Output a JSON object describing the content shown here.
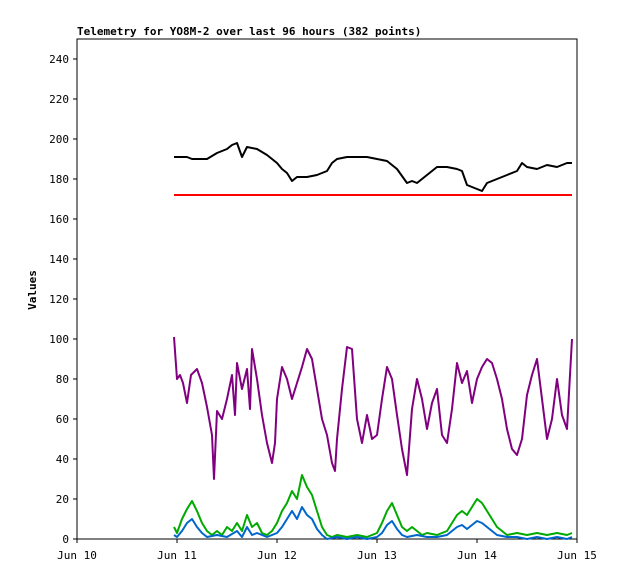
{
  "chart_data": {
    "type": "line",
    "title": "Telemetry for YO8M-2 over last 96 hours (382 points)",
    "xlabel": "",
    "ylabel": "Values",
    "ylim": [
      0,
      250
    ],
    "yticks": [
      0,
      20,
      40,
      60,
      80,
      100,
      120,
      140,
      160,
      180,
      200,
      220,
      240
    ],
    "xlim": [
      0,
      5
    ],
    "xticks": [
      {
        "x": 0,
        "label": "Jun 10"
      },
      {
        "x": 1,
        "label": "Jun 11"
      },
      {
        "x": 2,
        "label": "Jun 12"
      },
      {
        "x": 3,
        "label": "Jun 13"
      },
      {
        "x": 4,
        "label": "Jun 14"
      },
      {
        "x": 5,
        "label": "Jun 15"
      }
    ],
    "grid": false,
    "x_note": "x values are days after Jun 10 00:00",
    "series": [
      {
        "color": "#000000",
        "points": [
          [
            0.97,
            191
          ],
          [
            1.1,
            191
          ],
          [
            1.15,
            190
          ],
          [
            1.3,
            190
          ],
          [
            1.4,
            193
          ],
          [
            1.5,
            195
          ],
          [
            1.55,
            197
          ],
          [
            1.6,
            198
          ],
          [
            1.65,
            191
          ],
          [
            1.7,
            196
          ],
          [
            1.8,
            195
          ],
          [
            1.9,
            192
          ],
          [
            2.0,
            188
          ],
          [
            2.05,
            185
          ],
          [
            2.1,
            183
          ],
          [
            2.15,
            179
          ],
          [
            2.2,
            181
          ],
          [
            2.3,
            181
          ],
          [
            2.4,
            182
          ],
          [
            2.5,
            184
          ],
          [
            2.55,
            188
          ],
          [
            2.6,
            190
          ],
          [
            2.7,
            191
          ],
          [
            2.8,
            191
          ],
          [
            2.9,
            191
          ],
          [
            3.0,
            190
          ],
          [
            3.1,
            189
          ],
          [
            3.2,
            185
          ],
          [
            3.3,
            178
          ],
          [
            3.35,
            179
          ],
          [
            3.4,
            178
          ],
          [
            3.5,
            182
          ],
          [
            3.6,
            186
          ],
          [
            3.7,
            186
          ],
          [
            3.8,
            185
          ],
          [
            3.85,
            184
          ],
          [
            3.9,
            177
          ],
          [
            4.0,
            175
          ],
          [
            4.05,
            174
          ],
          [
            4.1,
            178
          ],
          [
            4.2,
            180
          ],
          [
            4.3,
            182
          ],
          [
            4.4,
            184
          ],
          [
            4.45,
            188
          ],
          [
            4.5,
            186
          ],
          [
            4.6,
            185
          ],
          [
            4.7,
            187
          ],
          [
            4.8,
            186
          ],
          [
            4.9,
            188
          ],
          [
            4.95,
            188
          ]
        ]
      },
      {
        "color": "#ff0000",
        "points": [
          [
            0.97,
            172
          ],
          [
            4.95,
            172
          ]
        ]
      },
      {
        "color": "#800080",
        "points": [
          [
            0.97,
            101
          ],
          [
            1.0,
            80
          ],
          [
            1.03,
            82
          ],
          [
            1.06,
            78
          ],
          [
            1.1,
            68
          ],
          [
            1.14,
            82
          ],
          [
            1.2,
            85
          ],
          [
            1.25,
            78
          ],
          [
            1.3,
            66
          ],
          [
            1.35,
            52
          ],
          [
            1.37,
            30
          ],
          [
            1.4,
            64
          ],
          [
            1.45,
            60
          ],
          [
            1.5,
            70
          ],
          [
            1.55,
            82
          ],
          [
            1.58,
            62
          ],
          [
            1.6,
            88
          ],
          [
            1.65,
            75
          ],
          [
            1.7,
            85
          ],
          [
            1.73,
            65
          ],
          [
            1.75,
            95
          ],
          [
            1.8,
            80
          ],
          [
            1.85,
            62
          ],
          [
            1.9,
            48
          ],
          [
            1.95,
            38
          ],
          [
            1.98,
            48
          ],
          [
            2.0,
            70
          ],
          [
            2.05,
            86
          ],
          [
            2.1,
            80
          ],
          [
            2.15,
            70
          ],
          [
            2.2,
            78
          ],
          [
            2.25,
            86
          ],
          [
            2.3,
            95
          ],
          [
            2.35,
            90
          ],
          [
            2.4,
            75
          ],
          [
            2.45,
            60
          ],
          [
            2.5,
            52
          ],
          [
            2.55,
            38
          ],
          [
            2.58,
            34
          ],
          [
            2.6,
            50
          ],
          [
            2.65,
            75
          ],
          [
            2.7,
            96
          ],
          [
            2.75,
            95
          ],
          [
            2.8,
            60
          ],
          [
            2.85,
            48
          ],
          [
            2.9,
            62
          ],
          [
            2.95,
            50
          ],
          [
            3.0,
            52
          ],
          [
            3.05,
            70
          ],
          [
            3.1,
            86
          ],
          [
            3.15,
            80
          ],
          [
            3.2,
            62
          ],
          [
            3.25,
            45
          ],
          [
            3.3,
            32
          ],
          [
            3.35,
            65
          ],
          [
            3.4,
            80
          ],
          [
            3.45,
            70
          ],
          [
            3.5,
            55
          ],
          [
            3.55,
            68
          ],
          [
            3.6,
            75
          ],
          [
            3.65,
            52
          ],
          [
            3.7,
            48
          ],
          [
            3.75,
            65
          ],
          [
            3.8,
            88
          ],
          [
            3.85,
            78
          ],
          [
            3.9,
            84
          ],
          [
            3.95,
            68
          ],
          [
            4.0,
            80
          ],
          [
            4.05,
            86
          ],
          [
            4.1,
            90
          ],
          [
            4.15,
            88
          ],
          [
            4.2,
            80
          ],
          [
            4.25,
            70
          ],
          [
            4.3,
            55
          ],
          [
            4.35,
            45
          ],
          [
            4.4,
            42
          ],
          [
            4.45,
            50
          ],
          [
            4.5,
            72
          ],
          [
            4.55,
            82
          ],
          [
            4.6,
            90
          ],
          [
            4.65,
            70
          ],
          [
            4.7,
            50
          ],
          [
            4.75,
            60
          ],
          [
            4.8,
            80
          ],
          [
            4.85,
            62
          ],
          [
            4.9,
            55
          ],
          [
            4.95,
            100
          ]
        ]
      },
      {
        "color": "#00aa00",
        "points": [
          [
            0.97,
            6
          ],
          [
            1.0,
            3
          ],
          [
            1.05,
            10
          ],
          [
            1.1,
            15
          ],
          [
            1.15,
            19
          ],
          [
            1.2,
            14
          ],
          [
            1.25,
            8
          ],
          [
            1.3,
            4
          ],
          [
            1.35,
            2
          ],
          [
            1.4,
            4
          ],
          [
            1.45,
            2
          ],
          [
            1.5,
            6
          ],
          [
            1.55,
            4
          ],
          [
            1.6,
            8
          ],
          [
            1.65,
            4
          ],
          [
            1.7,
            12
          ],
          [
            1.75,
            6
          ],
          [
            1.8,
            8
          ],
          [
            1.85,
            3
          ],
          [
            1.9,
            2
          ],
          [
            1.95,
            4
          ],
          [
            2.0,
            8
          ],
          [
            2.05,
            14
          ],
          [
            2.1,
            18
          ],
          [
            2.15,
            24
          ],
          [
            2.2,
            20
          ],
          [
            2.25,
            32
          ],
          [
            2.3,
            26
          ],
          [
            2.35,
            22
          ],
          [
            2.4,
            14
          ],
          [
            2.45,
            6
          ],
          [
            2.5,
            2
          ],
          [
            2.55,
            1
          ],
          [
            2.6,
            2
          ],
          [
            2.7,
            1
          ],
          [
            2.8,
            2
          ],
          [
            2.9,
            1
          ],
          [
            3.0,
            3
          ],
          [
            3.05,
            8
          ],
          [
            3.1,
            14
          ],
          [
            3.15,
            18
          ],
          [
            3.2,
            12
          ],
          [
            3.25,
            6
          ],
          [
            3.3,
            4
          ],
          [
            3.35,
            6
          ],
          [
            3.4,
            4
          ],
          [
            3.45,
            2
          ],
          [
            3.5,
            3
          ],
          [
            3.6,
            2
          ],
          [
            3.7,
            4
          ],
          [
            3.75,
            8
          ],
          [
            3.8,
            12
          ],
          [
            3.85,
            14
          ],
          [
            3.9,
            12
          ],
          [
            3.95,
            16
          ],
          [
            4.0,
            20
          ],
          [
            4.05,
            18
          ],
          [
            4.1,
            14
          ],
          [
            4.15,
            10
          ],
          [
            4.2,
            6
          ],
          [
            4.25,
            4
          ],
          [
            4.3,
            2
          ],
          [
            4.4,
            3
          ],
          [
            4.5,
            2
          ],
          [
            4.6,
            3
          ],
          [
            4.7,
            2
          ],
          [
            4.8,
            3
          ],
          [
            4.9,
            2
          ],
          [
            4.95,
            3
          ]
        ]
      },
      {
        "color": "#0066cc",
        "points": [
          [
            0.97,
            2
          ],
          [
            1.0,
            1
          ],
          [
            1.05,
            4
          ],
          [
            1.1,
            8
          ],
          [
            1.15,
            10
          ],
          [
            1.2,
            6
          ],
          [
            1.25,
            3
          ],
          [
            1.3,
            1
          ],
          [
            1.4,
            2
          ],
          [
            1.5,
            1
          ],
          [
            1.6,
            4
          ],
          [
            1.65,
            1
          ],
          [
            1.7,
            6
          ],
          [
            1.75,
            2
          ],
          [
            1.8,
            3
          ],
          [
            1.9,
            1
          ],
          [
            2.0,
            3
          ],
          [
            2.05,
            6
          ],
          [
            2.1,
            10
          ],
          [
            2.15,
            14
          ],
          [
            2.2,
            10
          ],
          [
            2.25,
            16
          ],
          [
            2.3,
            12
          ],
          [
            2.35,
            10
          ],
          [
            2.4,
            5
          ],
          [
            2.45,
            2
          ],
          [
            2.5,
            0
          ],
          [
            2.6,
            1
          ],
          [
            2.7,
            0
          ],
          [
            2.8,
            1
          ],
          [
            2.9,
            0
          ],
          [
            3.0,
            1
          ],
          [
            3.05,
            3
          ],
          [
            3.1,
            7
          ],
          [
            3.15,
            9
          ],
          [
            3.2,
            5
          ],
          [
            3.25,
            2
          ],
          [
            3.3,
            1
          ],
          [
            3.4,
            2
          ],
          [
            3.5,
            1
          ],
          [
            3.6,
            1
          ],
          [
            3.7,
            2
          ],
          [
            3.75,
            4
          ],
          [
            3.8,
            6
          ],
          [
            3.85,
            7
          ],
          [
            3.9,
            5
          ],
          [
            3.95,
            7
          ],
          [
            4.0,
            9
          ],
          [
            4.05,
            8
          ],
          [
            4.1,
            6
          ],
          [
            4.15,
            4
          ],
          [
            4.2,
            2
          ],
          [
            4.3,
            1
          ],
          [
            4.4,
            1
          ],
          [
            4.5,
            0
          ],
          [
            4.6,
            1
          ],
          [
            4.7,
            0
          ],
          [
            4.8,
            1
          ],
          [
            4.9,
            0
          ],
          [
            4.95,
            1
          ]
        ]
      }
    ]
  }
}
